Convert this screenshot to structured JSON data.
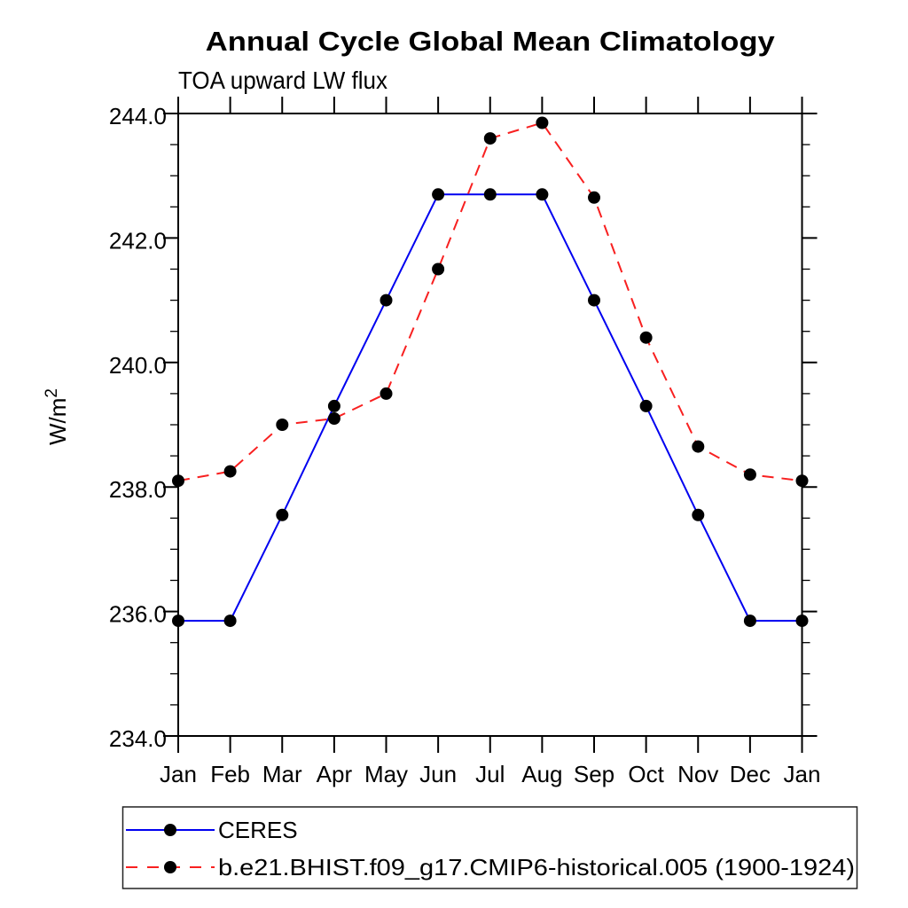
{
  "chart_data": {
    "type": "line",
    "title": "Annual Cycle Global Mean Climatology",
    "subtitle": "TOA upward LW flux",
    "ylabel_base": "W/m",
    "ylabel_sup": "2",
    "x": [
      "Jan",
      "Feb",
      "Mar",
      "Apr",
      "May",
      "Jun",
      "Jul",
      "Aug",
      "Sep",
      "Oct",
      "Nov",
      "Dec",
      "Jan"
    ],
    "ylim": [
      234.0,
      244.0
    ],
    "y_major_ticks": [
      "234.0",
      "236.0",
      "238.0",
      "240.0",
      "242.0",
      "244.0"
    ],
    "y_major_interval": 2.0,
    "y_minor_interval": 0.5,
    "grid": false,
    "legend_position": "bottom-left",
    "marker": "filled-circle",
    "marker_color": "#000000",
    "axis_color": "#000000",
    "series": [
      {
        "name": "CERES",
        "color": "#0000f0",
        "line_style": "solid",
        "values": [
          235.85,
          235.85,
          237.55,
          239.3,
          241.0,
          242.7,
          242.7,
          242.7,
          241.0,
          239.3,
          237.55,
          235.85,
          235.85
        ]
      },
      {
        "name": "b.e21.BHIST.f09_g17.CMIP6-historical.005 (1900-1924)",
        "color": "#f82020",
        "line_style": "dashed",
        "values": [
          238.1,
          238.25,
          239.0,
          239.1,
          239.5,
          241.5,
          243.6,
          243.85,
          242.65,
          240.4,
          238.65,
          238.2,
          238.1
        ]
      }
    ]
  }
}
